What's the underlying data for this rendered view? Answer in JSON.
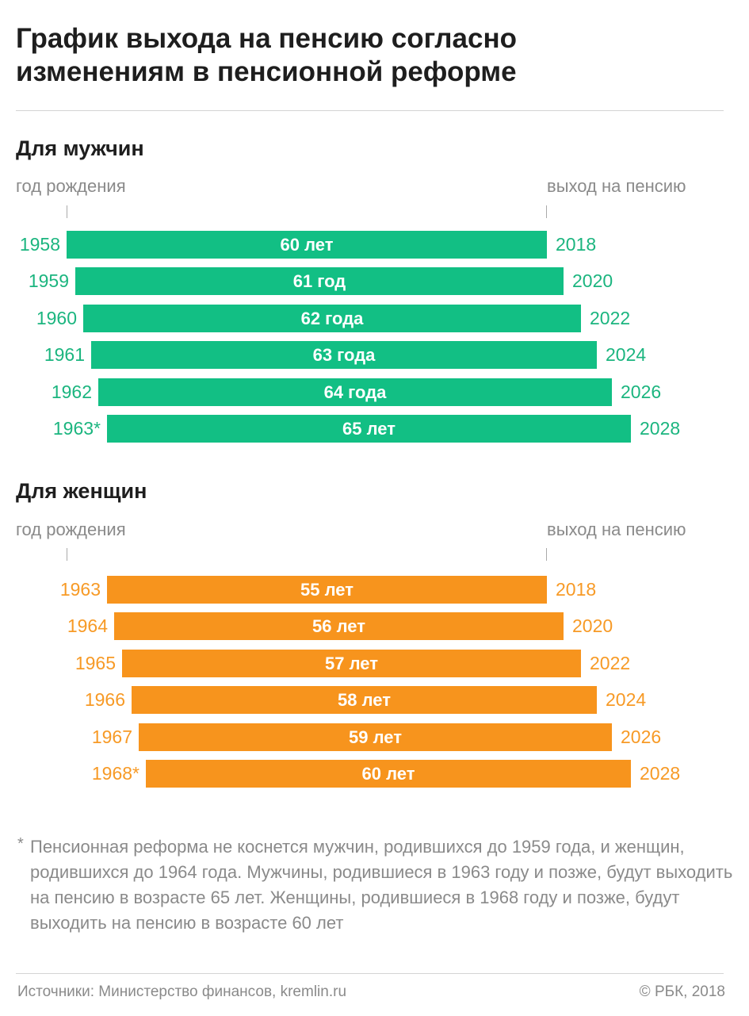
{
  "title": {
    "line1": "График выхода на пенсию согласно",
    "line2": "изменениям в пенсионной реформе"
  },
  "chart_data": [
    {
      "type": "bar",
      "subtitle": "Для мужчин",
      "left_axis_label": "год рождения",
      "right_axis_label": "выход на пенсию",
      "birth_years": [
        "1958",
        "1959",
        "1960",
        "1961",
        "1962",
        "1963*"
      ],
      "labels": [
        "60 лет",
        "61 год",
        "62 года",
        "63 года",
        "64 года",
        "65 лет"
      ],
      "retirement_years": [
        "2018",
        "2020",
        "2022",
        "2024",
        "2026",
        "2028"
      ],
      "color": "#12bf84",
      "text_color": "#1bb57f"
    },
    {
      "type": "bar",
      "subtitle": "Для женщин",
      "left_axis_label": "год рождения",
      "right_axis_label": "выход на пенсию",
      "birth_years": [
        "1963",
        "1964",
        "1965",
        "1966",
        "1967",
        "1968*"
      ],
      "labels": [
        "55 лет",
        "56 лет",
        "57 лет",
        "58 лет",
        "59 лет",
        "60 лет"
      ],
      "retirement_years": [
        "2018",
        "2020",
        "2022",
        "2024",
        "2026",
        "2028"
      ],
      "color": "#f7941d",
      "text_color": "#f79a26"
    }
  ],
  "footnote": {
    "marker": "*",
    "text": "Пенсионная реформа не коснется мужчин, родившихся до 1959 года, и женщин, родившихся до 1964 года. Мужчины, родившиеся в 1963 году и позже, будут выходить на пенсию в возрасте 65 лет. Женщины, родившиеся в 1968 году и позже, будут выходить на пенсию в возрасте 60 лет"
  },
  "footer": {
    "sources": "Источники: Министерство финансов, kremlin.ru",
    "copyright": "© РБК, 2018"
  }
}
